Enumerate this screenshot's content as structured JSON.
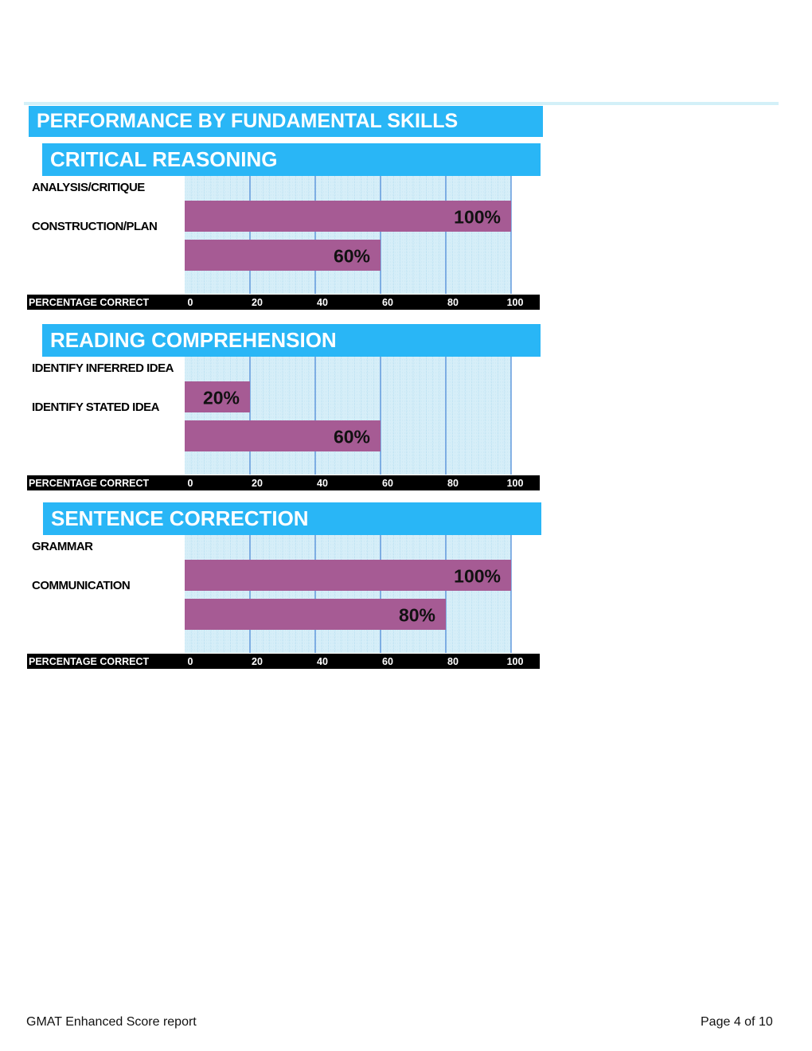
{
  "header": {
    "title": "PERFORMANCE BY FUNDAMENTAL SKILLS"
  },
  "colors": {
    "banner": "#29b6f6",
    "bar": "#a65b94",
    "plot_bg": "#d6eef8",
    "grid_minor": "#a9d8ee",
    "grid_major": "#4f8bd8",
    "axis_band": "#000000"
  },
  "chart_data": [
    {
      "type": "bar",
      "title": "CRITICAL REASONING",
      "orientation": "horizontal",
      "categories": [
        "ANALYSIS/CRITIQUE",
        "CONSTRUCTION/PLAN"
      ],
      "values": [
        100,
        60
      ],
      "value_labels": [
        "100%",
        "60%"
      ],
      "xlabel": "PERCENTAGE CORRECT",
      "xlim": [
        0,
        100
      ],
      "xticks": [
        "0",
        "20",
        "40",
        "60",
        "80",
        "100"
      ],
      "grid": true
    },
    {
      "type": "bar",
      "title": "READING COMPREHENSION",
      "orientation": "horizontal",
      "categories": [
        "IDENTIFY INFERRED IDEA",
        "IDENTIFY STATED IDEA"
      ],
      "values": [
        20,
        60
      ],
      "value_labels": [
        "20%",
        "60%"
      ],
      "xlabel": "PERCENTAGE CORRECT",
      "xlim": [
        0,
        100
      ],
      "xticks": [
        "0",
        "20",
        "40",
        "60",
        "80",
        "100"
      ],
      "grid": true
    },
    {
      "type": "bar",
      "title": "SENTENCE CORRECTION",
      "orientation": "horizontal",
      "categories": [
        "GRAMMAR",
        "COMMUNICATION"
      ],
      "values": [
        100,
        80
      ],
      "value_labels": [
        "100%",
        "80%"
      ],
      "xlabel": "PERCENTAGE CORRECT",
      "xlim": [
        0,
        100
      ],
      "xticks": [
        "0",
        "20",
        "40",
        "60",
        "80",
        "100"
      ],
      "grid": true
    }
  ],
  "footer": {
    "left": "GMAT Enhanced Score report",
    "right": "Page 4 of 10"
  }
}
